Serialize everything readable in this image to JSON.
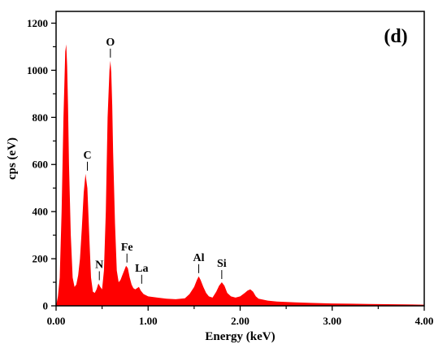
{
  "chart_data": {
    "type": "area",
    "panel_label": "(d)",
    "xlabel": "Energy (keV)",
    "ylabel": "cps (eV)",
    "xlim": [
      0,
      4.0
    ],
    "ylim": [
      0,
      1250
    ],
    "x_ticks": [
      0.0,
      1.0,
      2.0,
      3.0,
      4.0
    ],
    "x_tick_labels": [
      "0.00",
      "1.00",
      "2.00",
      "3.00",
      "4.00"
    ],
    "y_ticks": [
      0,
      200,
      400,
      600,
      800,
      1000,
      1200
    ],
    "y_tick_labels": [
      "0",
      "200",
      "400",
      "600",
      "800",
      "1000",
      "1200"
    ],
    "fill_color": "#ff0000",
    "grid": false,
    "legend": "none",
    "series": [
      {
        "x": [
          0.0,
          0.02,
          0.04,
          0.06,
          0.08,
          0.1,
          0.11,
          0.12,
          0.13,
          0.14,
          0.16,
          0.18,
          0.2,
          0.22,
          0.24,
          0.26,
          0.28,
          0.3,
          0.32,
          0.34,
          0.36,
          0.38,
          0.4,
          0.42,
          0.44,
          0.46,
          0.48,
          0.5,
          0.52,
          0.54,
          0.56,
          0.58,
          0.59,
          0.6,
          0.61,
          0.62,
          0.64,
          0.66,
          0.68,
          0.7,
          0.72,
          0.74,
          0.76,
          0.78,
          0.8,
          0.82,
          0.84,
          0.86,
          0.88,
          0.9,
          0.92,
          0.95,
          1.0,
          1.1,
          1.2,
          1.3,
          1.4,
          1.45,
          1.5,
          1.53,
          1.55,
          1.57,
          1.6,
          1.63,
          1.66,
          1.7,
          1.74,
          1.77,
          1.8,
          1.83,
          1.86,
          1.9,
          1.95,
          2.0,
          2.05,
          2.08,
          2.11,
          2.14,
          2.17,
          2.2,
          2.3,
          2.4,
          2.6,
          2.8,
          3.0,
          3.2,
          3.4,
          3.6,
          3.8,
          4.0
        ],
        "y": [
          0,
          40,
          120,
          400,
          800,
          1080,
          1110,
          1020,
          850,
          600,
          300,
          120,
          80,
          90,
          130,
          200,
          330,
          480,
          560,
          500,
          300,
          120,
          60,
          55,
          70,
          95,
          80,
          70,
          150,
          400,
          800,
          1000,
          1040,
          990,
          850,
          650,
          350,
          150,
          100,
          110,
          130,
          150,
          170,
          160,
          120,
          90,
          75,
          70,
          75,
          80,
          65,
          50,
          40,
          35,
          30,
          28,
          32,
          50,
          80,
          110,
          125,
          110,
          80,
          55,
          40,
          35,
          60,
          85,
          100,
          85,
          55,
          40,
          35,
          40,
          55,
          65,
          70,
          60,
          40,
          30,
          22,
          18,
          15,
          12,
          10,
          9,
          8,
          7,
          6,
          5
        ]
      }
    ],
    "annotations": [
      {
        "label": "O",
        "x": 0.59,
        "y": 1040
      },
      {
        "label": "C",
        "x": 0.34,
        "y": 560
      },
      {
        "label": "N",
        "x": 0.47,
        "y": 95
      },
      {
        "label": "Fe",
        "x": 0.77,
        "y": 170
      },
      {
        "label": "La",
        "x": 0.93,
        "y": 80
      },
      {
        "label": "Al",
        "x": 1.55,
        "y": 125
      },
      {
        "label": "Si",
        "x": 1.8,
        "y": 100
      }
    ]
  }
}
